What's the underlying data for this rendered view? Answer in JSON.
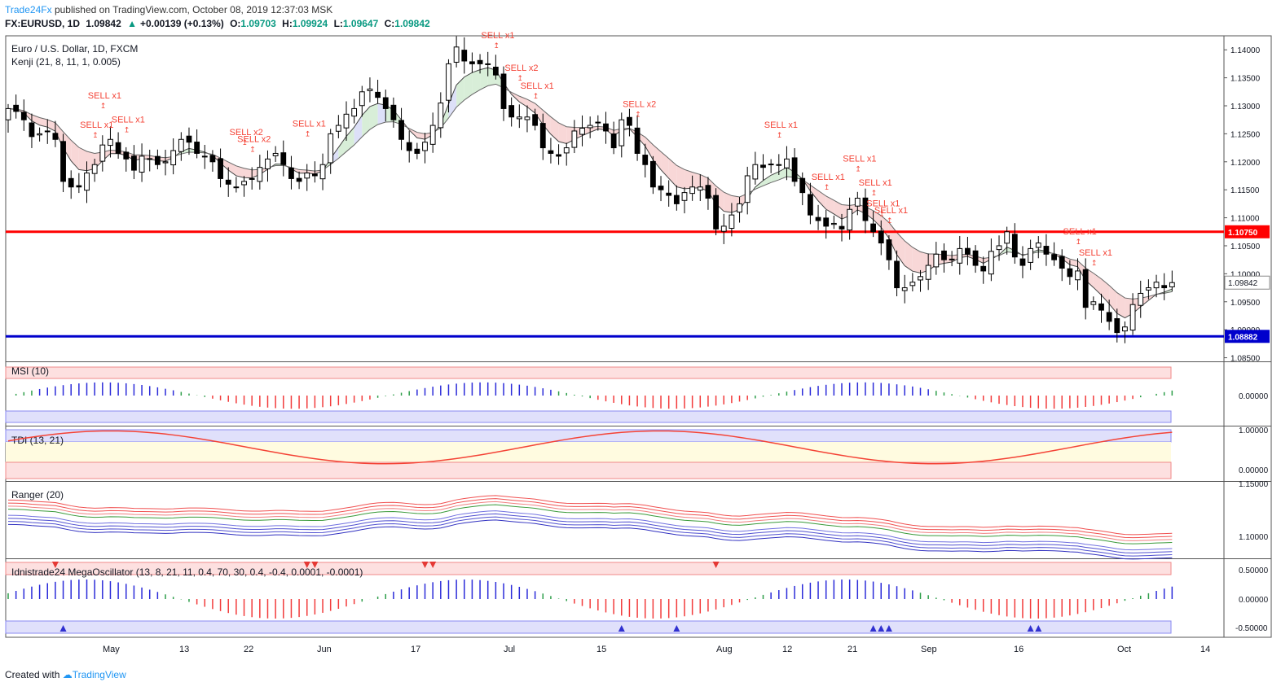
{
  "header": {
    "brand": "Trade24Fx",
    "published": "published on TradingView.com, October 08, 2019 12:37:03 MSK",
    "symbol": "FX:EURUSD, 1D",
    "last": "1.09842",
    "change": "+0.00139 (+0.13%)",
    "o_label": "O:",
    "o_value": "1.09703",
    "h_label": "H:",
    "h_value": "1.09924",
    "l_label": "L:",
    "l_value": "1.09647",
    "c_label": "C:",
    "c_value": "1.09842"
  },
  "footer": {
    "created_with": "Created with",
    "brand": "TradingView"
  },
  "colors": {
    "up_candle": "#ffffff",
    "down_candle": "#000000",
    "resistance": "#ff0000",
    "support": "#0000cc",
    "sell_label": "#f44336",
    "buy_label": "#2196f3",
    "kenji_bear_fill": "#f8d7d7",
    "kenji_bull_fill": "#d8eed8",
    "kenji_blue_fill": "#dde0f8"
  },
  "chart_data": [
    {
      "type": "candlestick",
      "title": "Euro / U.S. Dollar, 1D, FXCM",
      "indicator": "Kenji (21, 8, 11, 1, 0.005)",
      "ylim": [
        1.0845,
        1.1425
      ],
      "y_ticks": [
        "1.14000",
        "1.13500",
        "1.13000",
        "1.12500",
        "1.12000",
        "1.11500",
        "1.11000",
        "1.10500",
        "1.10000",
        "1.09500",
        "1.09000",
        "1.08500"
      ],
      "x_ticks": [
        "May",
        "13",
        "22",
        "Jun",
        "17",
        "Jul",
        "15",
        "Aug",
        "12",
        "21",
        "Sep",
        "16",
        "Oct",
        "14"
      ],
      "resistance": {
        "value": 1.1075,
        "label": "1.10750"
      },
      "support": {
        "value": 1.08882,
        "label": "1.08882"
      },
      "last_price": {
        "value": 1.09842,
        "label": "1.09842"
      },
      "close": [
        1.1295,
        1.129,
        1.1275,
        1.1245,
        1.125,
        1.1255,
        1.124,
        1.1165,
        1.1155,
        1.1155,
        1.118,
        1.1195,
        1.123,
        1.124,
        1.1215,
        1.1205,
        1.1185,
        1.121,
        1.1205,
        1.1195,
        1.12,
        1.122,
        1.124,
        1.1235,
        1.1215,
        1.121,
        1.12,
        1.117,
        1.116,
        1.1155,
        1.1165,
        1.117,
        1.119,
        1.1205,
        1.1215,
        1.1195,
        1.117,
        1.1165,
        1.118,
        1.1175,
        1.1195,
        1.125,
        1.1265,
        1.1285,
        1.1295,
        1.1325,
        1.133,
        1.1315,
        1.1295,
        1.1275,
        1.124,
        1.122,
        1.1215,
        1.1235,
        1.1265,
        1.1305,
        1.1375,
        1.1405,
        1.138,
        1.1375,
        1.1375,
        1.1375,
        1.1355,
        1.1295,
        1.128,
        1.128,
        1.128,
        1.1265,
        1.1225,
        1.1215,
        1.121,
        1.1225,
        1.1255,
        1.126,
        1.1265,
        1.127,
        1.1255,
        1.1225,
        1.1275,
        1.1265,
        1.1215,
        1.1195,
        1.1155,
        1.115,
        1.114,
        1.1125,
        1.1145,
        1.1155,
        1.1155,
        1.1135,
        1.108,
        1.1085,
        1.1105,
        1.1125,
        1.1175,
        1.1195,
        1.119,
        1.1195,
        1.1195,
        1.1205,
        1.1165,
        1.1145,
        1.1105,
        1.1095,
        1.1085,
        1.109,
        1.108,
        1.1115,
        1.1135,
        1.1095,
        1.1075,
        1.1055,
        1.1025,
        1.0975,
        1.0975,
        1.0985,
        1.0995,
        1.1015,
        1.1035,
        1.1025,
        1.1025,
        1.1045,
        1.1035,
        1.1015,
        1.1005,
        1.104,
        1.105,
        1.1075,
        1.103,
        1.1015,
        1.1045,
        1.1055,
        1.1035,
        1.1025,
        1.101,
        1.0995,
        1.1005,
        1.094,
        1.095,
        1.0935,
        1.0915,
        1.0895,
        1.0905,
        1.0945,
        1.0965,
        1.0975,
        1.0985,
        1.0975,
        1.09842
      ],
      "sell_signals": [
        "SELL x1",
        "SELL x1",
        "SELL x1",
        "SELL x2",
        "SELL x2",
        "SELL x1",
        "SELL x1",
        "SELL x2",
        "SELL x1",
        "SELL x2",
        "SELL x1",
        "SELL x1",
        "SELL x1",
        "SELL x1",
        "SELL x1",
        "SELL x1",
        "SELL x1",
        "SELL x1"
      ]
    },
    {
      "type": "bar",
      "title": "MSI (10)",
      "ylim": [
        -1,
        1
      ],
      "y_ticks": [
        "0.00000"
      ]
    },
    {
      "type": "line",
      "title": "TDI (13, 21)",
      "ylim": [
        -0.2,
        1.05
      ],
      "y_ticks": [
        "1.00000",
        "0.00000"
      ]
    },
    {
      "type": "line",
      "title": "Ranger (20)",
      "y_ticks": [
        "1.15000",
        "1.10000"
      ]
    },
    {
      "type": "bar",
      "title": "Idnistrade24 MegaOscillator (13, 8, 21, 11, 0.4, 70, 30, 0.4, -0.4, 0.0001, -0.0001)",
      "ylim": [
        -0.6,
        0.6
      ],
      "y_ticks": [
        "0.50000",
        "0.00000",
        "-0.50000"
      ]
    }
  ]
}
